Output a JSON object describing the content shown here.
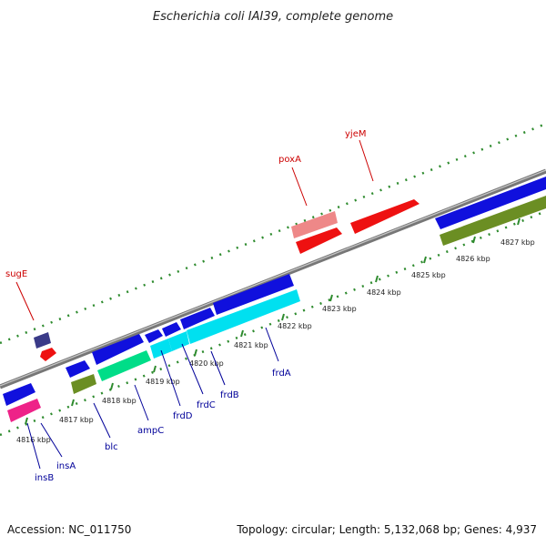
{
  "title": "Escherichia coli IAI39, complete genome",
  "accession_label": "Accession: NC_011750",
  "summary_label": "Topology: circular; Length: 5,132,068 bp; Genes: 4,937",
  "colors": {
    "backbone": "#888888",
    "dots": "#2e8b2e",
    "label_reverse": "#cc0000",
    "label_forward": "#000099",
    "gene_blue": "#1010dd",
    "gene_red": "#ee1111",
    "gene_pink": "#ee8888",
    "gene_navy": "#3a3a88",
    "gene_magenta": "#ee2288",
    "gene_olive": "#6b8e23",
    "gene_spring": "#00dd88",
    "gene_cyan": "#00e0f0"
  },
  "tick_labels": [
    "4816 kbp",
    "4817 kbp",
    "4818 kbp",
    "4819 kbp",
    "4820 kbp",
    "4821 kbp",
    "4822 kbp",
    "4823 kbp",
    "4824 kbp",
    "4825 kbp",
    "4826 kbp",
    "4827 kbp"
  ],
  "gene_labels": {
    "sugE": "sugE",
    "poxA": "poxA",
    "yjeM": "yjeM",
    "insB": "insB",
    "insA": "insA",
    "blc": "blc",
    "ampC": "ampC",
    "frdD": "frdD",
    "frdC": "frdC",
    "frdB": "frdB",
    "frdA": "frdA"
  }
}
